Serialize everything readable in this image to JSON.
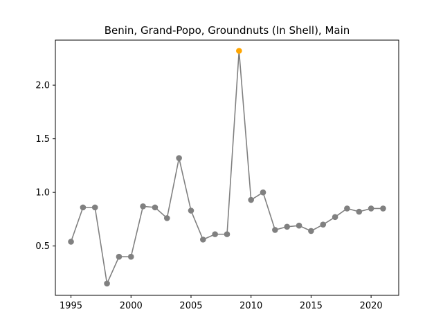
{
  "chart_data": {
    "type": "line",
    "title": "Benin, Grand-Popo, Groundnuts (In Shell), Main",
    "xlabel": "",
    "ylabel": "",
    "xlim": [
      1993.7,
      2022.3
    ],
    "ylim": [
      0.04,
      2.42
    ],
    "x_ticks": [
      1995,
      2000,
      2005,
      2010,
      2015,
      2020
    ],
    "y_ticks": [
      0.5,
      1.0,
      1.5,
      2.0
    ],
    "y_tick_labels": [
      "0.5",
      "1.0",
      "1.5",
      "2.0"
    ],
    "grid": false,
    "line_color": "#808080",
    "marker_color": "#808080",
    "highlight_color": "#ffa500",
    "highlight_x": 2009,
    "series": [
      {
        "x": [
          1995,
          1996,
          1997,
          1998,
          1999,
          2000,
          2001,
          2002,
          2003,
          2004,
          2005,
          2006,
          2007,
          2008,
          2009,
          2010,
          2011,
          2012,
          2013,
          2014,
          2015,
          2016,
          2017,
          2018,
          2019,
          2020,
          2021
        ],
        "values": [
          0.54,
          0.86,
          0.86,
          0.15,
          0.4,
          0.4,
          0.87,
          0.86,
          0.76,
          1.32,
          0.83,
          0.56,
          0.61,
          0.61,
          2.32,
          0.93,
          1.0,
          0.65,
          0.68,
          0.69,
          0.64,
          0.7,
          0.77,
          0.85,
          0.82,
          0.85,
          0.85
        ]
      }
    ]
  }
}
